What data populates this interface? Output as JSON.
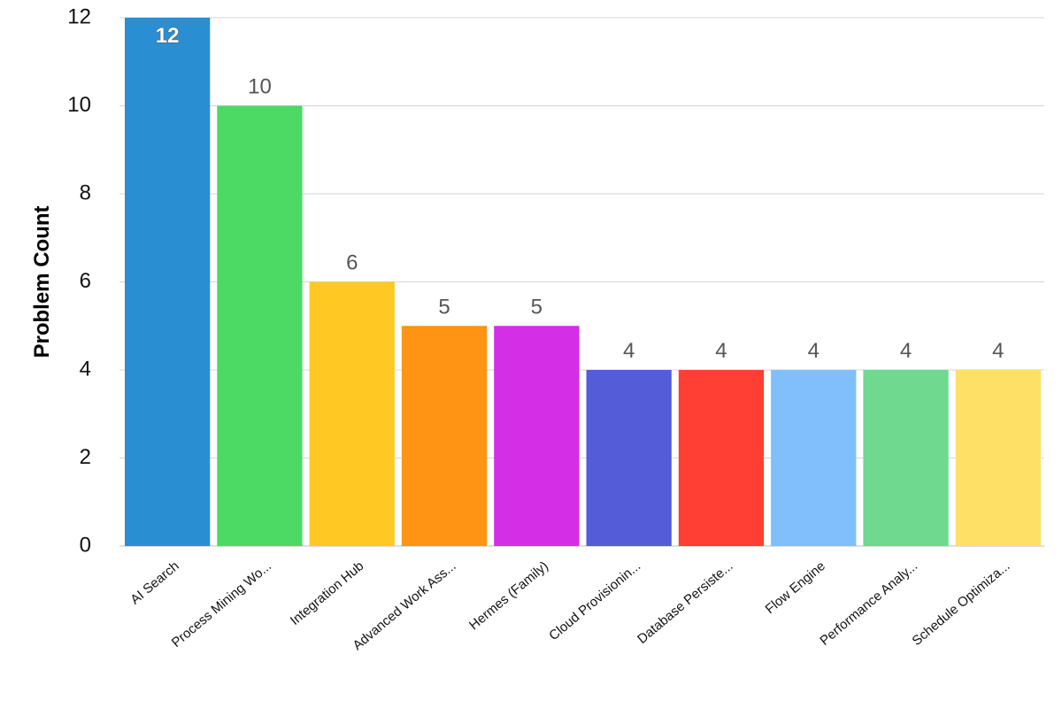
{
  "chart_data": {
    "type": "bar",
    "title": "",
    "xlabel": "",
    "ylabel": "Problem Count",
    "ylim": [
      0,
      12
    ],
    "yticks": [
      0,
      2,
      4,
      6,
      8,
      10,
      12
    ],
    "grid": true,
    "legend": "none",
    "categories": [
      "AI Search",
      "Process Mining Wo...",
      "Integration Hub",
      "Advanced Work Ass...",
      "Hermes (Family)",
      "Cloud Provisionin...",
      "Database Persiste...",
      "Flow Engine",
      "Performance Analy...",
      "Schedule Optimiza..."
    ],
    "values": [
      12,
      10,
      6,
      5,
      5,
      4,
      4,
      4,
      4,
      4
    ],
    "colors": [
      "#2A8ED3",
      "#4CD964",
      "#FFC822",
      "#FF9313",
      "#D42EE6",
      "#545CD8",
      "#FF3F33",
      "#80BFFB",
      "#6ED98F",
      "#FFE066"
    ]
  }
}
